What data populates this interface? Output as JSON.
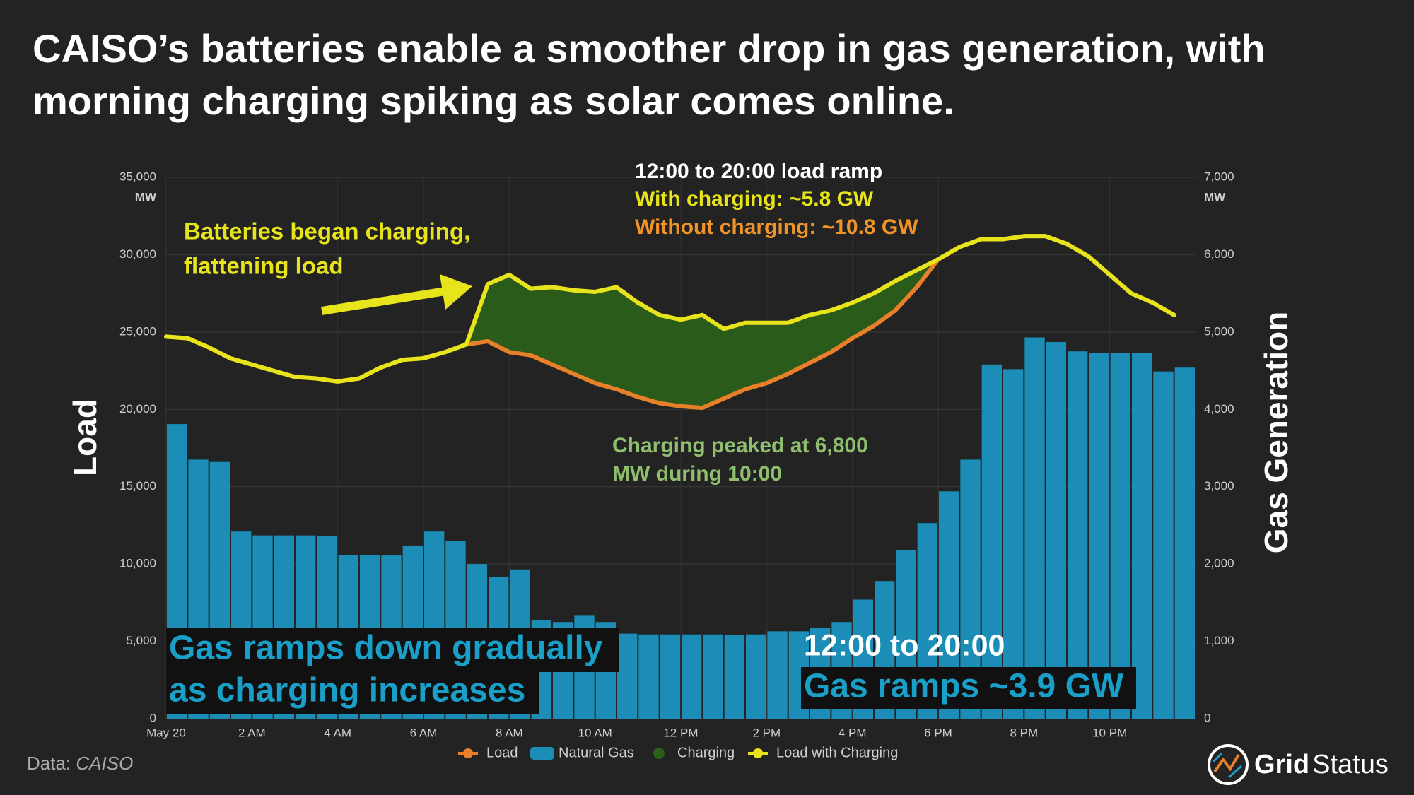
{
  "chart_data": {
    "type": "combo",
    "title": [
      "CAISO’s batteries enable a smoother drop in gas generation, with",
      "morning charging spiking as solar comes online."
    ],
    "x": [
      0,
      0.5,
      1,
      1.5,
      2,
      2.5,
      3,
      3.5,
      4,
      4.5,
      5,
      5.5,
      6,
      6.5,
      7,
      7.5,
      8,
      8.5,
      9,
      9.5,
      10,
      10.5,
      11,
      11.5,
      12,
      12.5,
      13,
      13.5,
      14,
      14.5,
      15,
      15.5,
      16,
      16.5,
      17,
      17.5,
      18,
      18.5,
      19,
      19.5,
      20,
      20.5,
      21,
      21.5,
      22,
      22.5,
      23,
      23.5
    ],
    "xlim": [
      0,
      24
    ],
    "xticks": [
      {
        "value": 0,
        "label": "May 20"
      },
      {
        "value": 2,
        "label": "2 AM"
      },
      {
        "value": 4,
        "label": "4 AM"
      },
      {
        "value": 6,
        "label": "6 AM"
      },
      {
        "value": 8,
        "label": "8 AM"
      },
      {
        "value": 10,
        "label": "10 AM"
      },
      {
        "value": 12,
        "label": "12 PM"
      },
      {
        "value": 14,
        "label": "2 PM"
      },
      {
        "value": 16,
        "label": "4 PM"
      },
      {
        "value": 18,
        "label": "6 PM"
      },
      {
        "value": 20,
        "label": "8 PM"
      },
      {
        "value": 22,
        "label": "10 PM"
      }
    ],
    "ylabel": "Load",
    "yunit": "MW",
    "ylim": [
      0,
      35000
    ],
    "yticks": [
      0,
      {
        "value": 5000,
        "label": "5,000"
      },
      {
        "value": 10000,
        "label": "10,000"
      },
      {
        "value": 15000,
        "label": "15,000"
      },
      {
        "value": 20000,
        "label": "20,000"
      },
      {
        "value": 25000,
        "label": "25,000"
      },
      {
        "value": 30000,
        "label": "30,000"
      },
      {
        "value": 35000,
        "label": "35,000"
      }
    ],
    "y2label": "Gas Generation",
    "y2unit": "MW",
    "y2lim": [
      0,
      7000
    ],
    "y2ticks": [
      0,
      {
        "value": 1000,
        "label": "1,000"
      },
      {
        "value": 2000,
        "label": "2,000"
      },
      {
        "value": 3000,
        "label": "3,000"
      },
      {
        "value": 4000,
        "label": "4,000"
      },
      {
        "value": 5000,
        "label": "5,000"
      },
      {
        "value": 6000,
        "label": "6,000"
      },
      {
        "value": 7000,
        "label": "7,000"
      }
    ],
    "grid": true,
    "series": [
      {
        "name": "Load",
        "type": "line",
        "color": "#e8802a",
        "values": [
          24700,
          24600,
          24000,
          23300,
          22900,
          22500,
          22100,
          22000,
          21800,
          22000,
          22700,
          23200,
          23300,
          23700,
          24200,
          24400,
          23700,
          23500,
          22900,
          22300,
          21700,
          21300,
          20800,
          20400,
          20200,
          20100,
          20700,
          21300,
          21700,
          22300,
          23000,
          23700,
          24600,
          25400,
          26400,
          27900,
          29700,
          30500,
          31000,
          31000,
          31200,
          31200,
          30700,
          29900,
          28700,
          27500,
          26900,
          26100
        ]
      },
      {
        "name": "Natural Gas",
        "type": "bar",
        "axis": "y2",
        "color": "#1b8db6",
        "values": [
          3810,
          3350,
          3320,
          2420,
          2370,
          2370,
          2370,
          2360,
          2120,
          2120,
          2110,
          2240,
          2420,
          2300,
          2000,
          1830,
          1930,
          1270,
          1250,
          1340,
          1250,
          1100,
          1090,
          1090,
          1090,
          1090,
          1080,
          1090,
          1130,
          1130,
          1170,
          1250,
          1540,
          1780,
          2180,
          2530,
          2940,
          3350,
          4580,
          4520,
          4930,
          4870,
          4750,
          4730,
          4730,
          4730,
          4490,
          4540
        ]
      },
      {
        "name": "Charging",
        "type": "area",
        "color": "#2b5f1b",
        "values": [
          0,
          0,
          0,
          0,
          0,
          0,
          0,
          0,
          0,
          0,
          0,
          0,
          0,
          0,
          0,
          3700,
          5000,
          4300,
          5000,
          5400,
          5900,
          6600,
          6100,
          5700,
          5600,
          6000,
          4500,
          4300,
          3900,
          3300,
          3100,
          2700,
          2300,
          2100,
          1900,
          1100,
          0,
          0,
          0,
          0,
          0,
          0,
          0,
          0,
          0,
          0,
          0,
          0
        ]
      },
      {
        "name": "Load with Charging",
        "type": "line",
        "color": "#e8e41c",
        "values": [
          24700,
          24600,
          24000,
          23300,
          22900,
          22500,
          22100,
          22000,
          21800,
          22000,
          22700,
          23200,
          23300,
          23700,
          24200,
          28100,
          28700,
          27800,
          27900,
          27700,
          27600,
          27900,
          26900,
          26100,
          25800,
          26100,
          25200,
          25600,
          25600,
          25600,
          26100,
          26400,
          26900,
          27500,
          28300,
          29000,
          29700,
          30500,
          31000,
          31000,
          31200,
          31200,
          30700,
          29900,
          28700,
          27500,
          26900,
          26100
        ]
      }
    ],
    "annotations": {
      "battery_note": [
        "Batteries began charging,",
        "flattening load"
      ],
      "ramp_header": "12:00 to 20:00 load ramp",
      "ramp_with": "With charging: ~5.8 GW",
      "ramp_without": "Without charging: ~10.8 GW",
      "peak_note": [
        "Charging peaked at 6,800",
        "MW during 10:00"
      ],
      "gas_note": [
        "Gas ramps down gradually",
        "as charging increases"
      ],
      "gas_ramp_header": "12:00 to 20:00",
      "gas_ramp": "Gas ramps ~3.9 GW"
    }
  },
  "source": {
    "label": "Data:",
    "name": "CAISO"
  },
  "brand": [
    "Grid",
    "Status"
  ]
}
